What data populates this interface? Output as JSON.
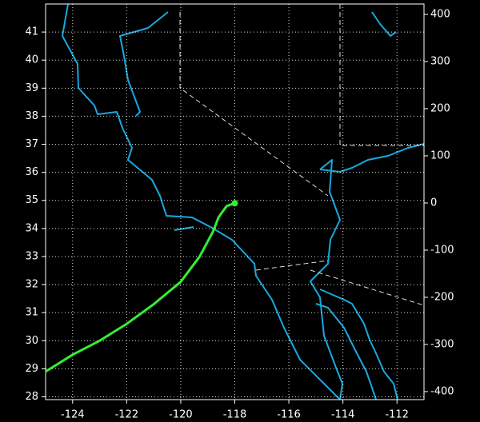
{
  "chart_data": {
    "type": "line",
    "x": [
      -125,
      -124,
      -123,
      -122,
      -121,
      -120,
      -119.3,
      -118.8,
      -118.6,
      -118.3,
      -118
    ],
    "series": [
      {
        "color": "#33ee33",
        "values": [
          28.9,
          29.5,
          30.0,
          30.6,
          31.3,
          32.1,
          33.0,
          33.9,
          34.4,
          34.8,
          34.9
        ]
      }
    ],
    "xlim": [
      -125,
      -111
    ],
    "xticks": [
      -124,
      -122,
      -120,
      -118,
      -116,
      -114,
      -112
    ],
    "ylim": [
      27.9,
      42
    ],
    "yticks": [
      28,
      29,
      30,
      31,
      32,
      33,
      34,
      35,
      36,
      37,
      38,
      39,
      40,
      41
    ],
    "y2lim": [
      -417,
      422
    ],
    "y2ticks": [
      -400,
      -300,
      -200,
      -100,
      0,
      100,
      200,
      300,
      400
    ],
    "grid": true
  }
}
